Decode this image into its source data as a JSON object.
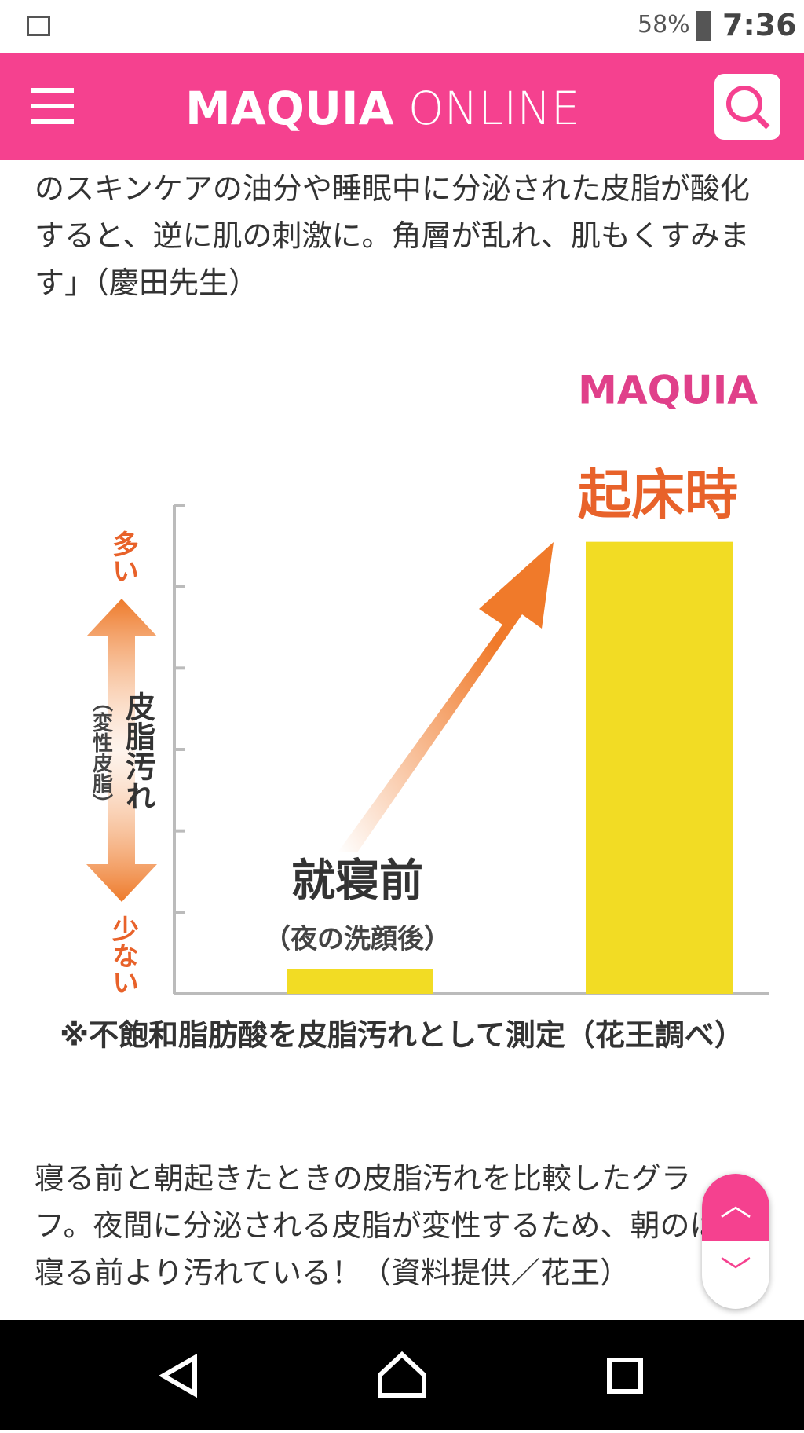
{
  "status_bar": {
    "battery": "58%",
    "time": "7:36"
  },
  "header": {
    "logo_bold": "MAQUIA",
    "logo_light": "ONLINE"
  },
  "article": {
    "paragraph_top": "のスキンケアの油分や睡眠中に分泌された皮脂が酸化すると、逆に肌の刺激に。角層が乱れ、肌もくすみます」（慶田先生）",
    "caption": "寝る前と朝起きたときの皮脂汚れを比較したグラフ。夜間に分泌される皮脂が変性するため、朝のは寝る前より汚れている！（資料提供／花王）"
  },
  "chart_data": {
    "type": "bar",
    "watermark": "MAQUIA",
    "categories": [
      "就寝前",
      "起床時"
    ],
    "before_note": "（夜の洗顔後）",
    "values": [
      0.3,
      5.55
    ],
    "color": "#f2dc24",
    "ylim": [
      0,
      6
    ],
    "yticks": [
      1,
      2,
      3,
      4,
      5,
      6
    ],
    "ylabel": "皮脂汚れ",
    "ylabel_note": "（変性皮脂）",
    "y_high": "多い",
    "y_low": "少ない",
    "footnote": "※不飽和脂肪酸を皮脂汚れとして測定（花王調べ）"
  }
}
